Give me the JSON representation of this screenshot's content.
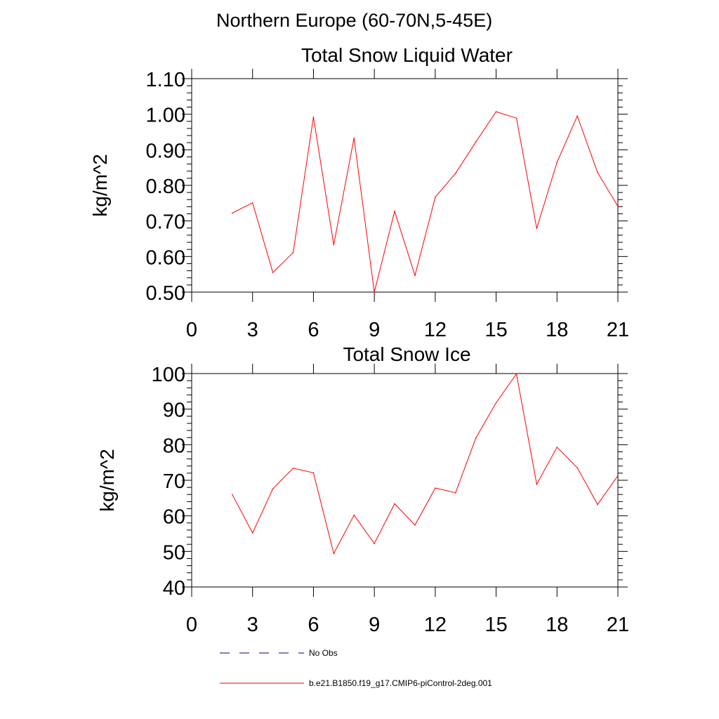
{
  "header": {
    "title": "Northern Europe (60-70N,5-45E)"
  },
  "chart_data": [
    {
      "type": "line",
      "title": "Total Snow Liquid Water",
      "ylabel": "kg/m^2",
      "xlabel": "",
      "xlim": [
        0,
        21
      ],
      "ylim": [
        0.5,
        1.1
      ],
      "xticks": [
        0,
        3,
        6,
        9,
        12,
        15,
        18,
        21
      ],
      "xtick_labels": [
        "0",
        "3",
        "6",
        "9",
        "12",
        "15",
        "18",
        "21"
      ],
      "yticks": [
        0.5,
        0.6,
        0.7,
        0.8,
        0.9,
        1.0,
        1.1
      ],
      "ytick_labels": [
        "0.50",
        "0.60",
        "0.70",
        "0.80",
        "0.90",
        "1.00",
        "1.10"
      ],
      "series": [
        {
          "name": "b.e21.B1850.f19_g17.CMIP6-piControl-2deg.001",
          "color": "#ff0000",
          "x": [
            2,
            3,
            4,
            5,
            6,
            7,
            8,
            9,
            10,
            11,
            12,
            13,
            14,
            15,
            16,
            17,
            18,
            19,
            20,
            21
          ],
          "values": [
            0.722,
            0.751,
            0.555,
            0.611,
            0.992,
            0.633,
            0.933,
            0.5,
            0.727,
            0.547,
            0.767,
            0.834,
            0.922,
            1.007,
            0.989,
            0.679,
            0.865,
            0.995,
            0.836,
            0.741
          ]
        }
      ]
    },
    {
      "type": "line",
      "title": "Total Snow Ice",
      "ylabel": "kg/m^2",
      "xlabel": "",
      "xlim": [
        0,
        21
      ],
      "ylim": [
        40,
        100
      ],
      "xticks": [
        0,
        3,
        6,
        9,
        12,
        15,
        18,
        21
      ],
      "xtick_labels": [
        "0",
        "3",
        "6",
        "9",
        "12",
        "15",
        "18",
        "21"
      ],
      "yticks": [
        40,
        50,
        60,
        70,
        80,
        90,
        100
      ],
      "ytick_labels": [
        "40",
        "50",
        "60",
        "70",
        "80",
        "90",
        "100"
      ],
      "series": [
        {
          "name": "b.e21.B1850.f19_g17.CMIP6-piControl-2deg.001",
          "color": "#ff0000",
          "x": [
            2,
            3,
            4,
            5,
            6,
            7,
            8,
            9,
            10,
            11,
            12,
            13,
            14,
            15,
            16,
            17,
            18,
            19,
            20,
            21
          ],
          "values": [
            66.0,
            55.2,
            67.6,
            73.4,
            72.1,
            49.4,
            60.2,
            52.2,
            63.4,
            57.4,
            67.8,
            66.5,
            81.9,
            91.8,
            99.9,
            68.9,
            79.3,
            73.5,
            63.2,
            71.3
          ]
        }
      ]
    }
  ],
  "legend": {
    "items": [
      {
        "label": "No Obs",
        "color": "#000080",
        "style": "dashed"
      },
      {
        "label": "b.e21.B1850.f19_g17.CMIP6-piControl-2deg.001",
        "color": "#ff0000",
        "style": "solid"
      }
    ]
  }
}
